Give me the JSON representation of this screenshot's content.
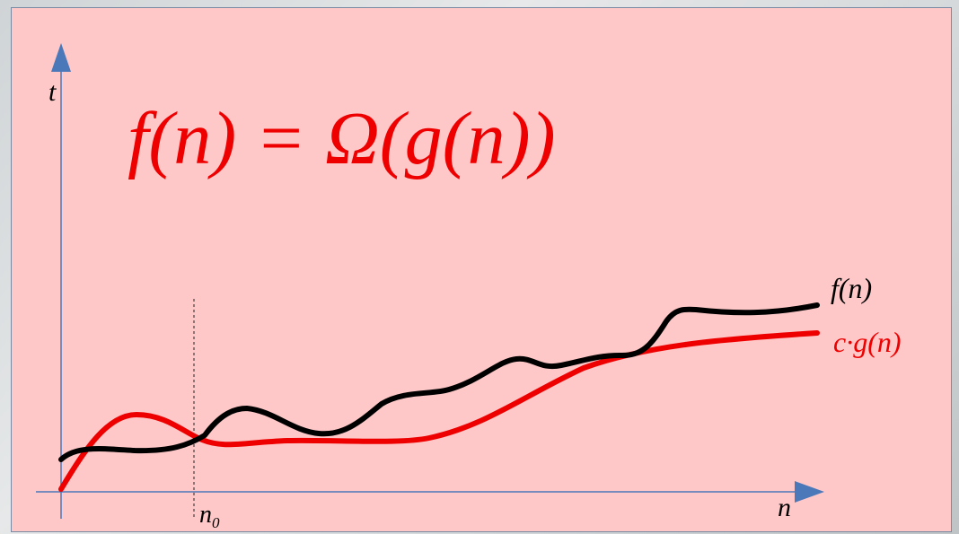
{
  "title": "f(n) = Ω(g(n))",
  "axes": {
    "y_label": "t",
    "x_label": "n"
  },
  "threshold": {
    "label_main": "n",
    "label_sub": "0"
  },
  "curves": [
    {
      "label": "f(n)",
      "color": "#000000"
    },
    {
      "label": "c·g(n)",
      "color": "#ee0000"
    }
  ],
  "colors": {
    "panel": "#ffc8c8",
    "axis": "#4a78b8",
    "title": "#ee0000"
  }
}
